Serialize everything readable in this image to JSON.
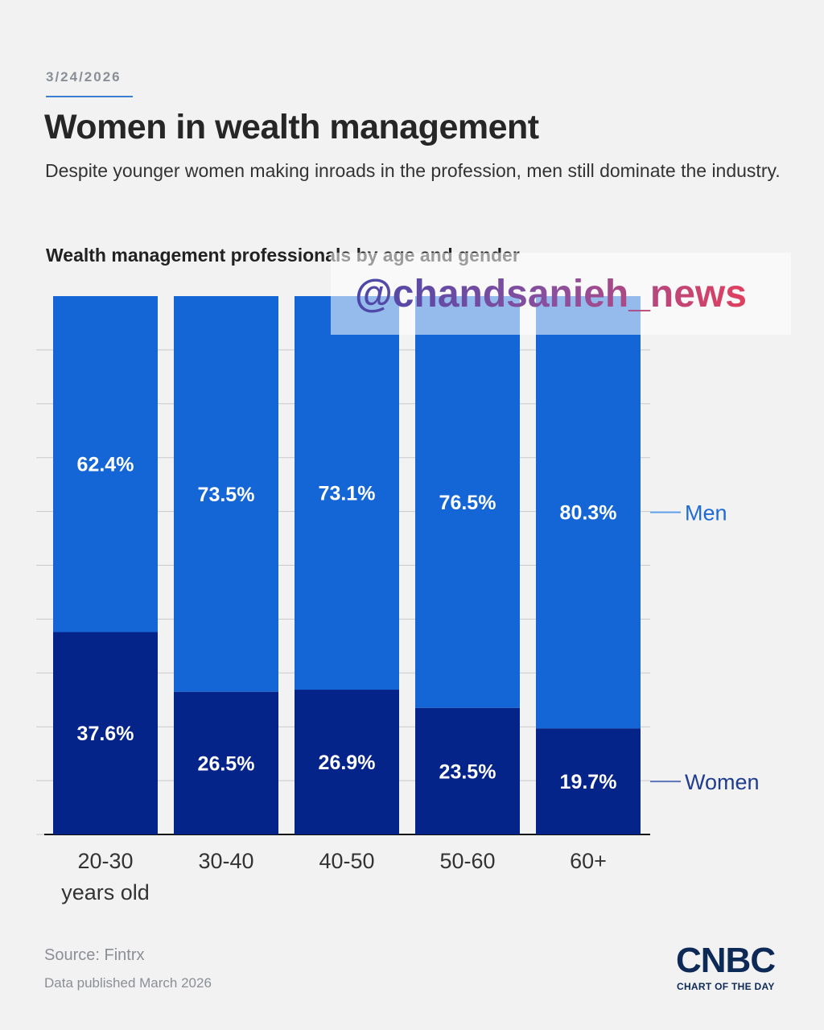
{
  "header": {
    "date": "3/24/2026",
    "title": "Women in wealth management",
    "subtitle": "Despite younger women making inroads in the profession, men still dominate the industry."
  },
  "watermark": "@chandsanieh_news",
  "footer": {
    "source": "Source: Fintrx",
    "published": "Data published March 2026",
    "logo": "CNBC",
    "logo_tagline": "CHART OF THE DAY"
  },
  "colors": {
    "men": "#1466d6",
    "women": "#05248a",
    "label_men": "#1e6bd6",
    "label_women": "#1f3c8e",
    "connector_men": "#5ea0ea",
    "connector_women": "#5a73b8"
  },
  "chart_data": {
    "type": "bar",
    "stacked": true,
    "normalized": true,
    "title": "Wealth management professionals by age and gender",
    "categories": [
      [
        "20-30",
        "years old"
      ],
      [
        "30-40"
      ],
      [
        "40-50"
      ],
      [
        "50-60"
      ],
      [
        "60+"
      ]
    ],
    "series": [
      {
        "name": "Women",
        "values": [
          37.6,
          26.5,
          26.9,
          23.5,
          19.7
        ],
        "labels": [
          "37.6%",
          "26.5%",
          "26.9%",
          "23.5%",
          "19.7%"
        ]
      },
      {
        "name": "Men",
        "values": [
          62.4,
          73.5,
          73.1,
          76.5,
          80.3
        ],
        "labels": [
          "62.4%",
          "73.5%",
          "73.1%",
          "76.5%",
          "80.3%"
        ]
      }
    ],
    "ylim": [
      0,
      100
    ],
    "grid": true,
    "legend": "direct labels right"
  }
}
